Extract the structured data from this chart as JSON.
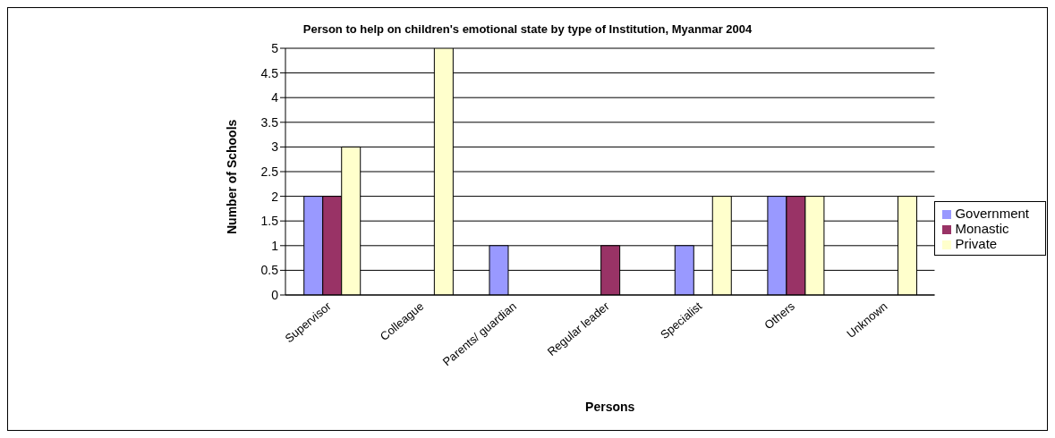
{
  "chart_data": {
    "type": "bar",
    "title": "Person to help on children's emotional state by type of Institution, Myanmar 2004",
    "xlabel": "Persons",
    "ylabel": "Number of Schools",
    "categories": [
      "Supervisor",
      "Colleague",
      "Parents/ guardian",
      "Regular  leader",
      "Specialist",
      "Others",
      "Unknown"
    ],
    "series": [
      {
        "name": "Government",
        "color": "#9999ff",
        "values": [
          2,
          0,
          1,
          0,
          1,
          2,
          0
        ]
      },
      {
        "name": "Monastic",
        "color": "#993366",
        "values": [
          2,
          0,
          0,
          1,
          0,
          2,
          0
        ]
      },
      {
        "name": "Private",
        "color": "#ffffcc",
        "values": [
          3,
          5,
          0,
          0,
          2,
          2,
          2
        ]
      }
    ],
    "ylim": [
      0,
      5
    ],
    "yticks": [
      0,
      0.5,
      1,
      1.5,
      2,
      2.5,
      3,
      3.5,
      4,
      4.5,
      5
    ],
    "grid": "y",
    "legend": "right"
  }
}
